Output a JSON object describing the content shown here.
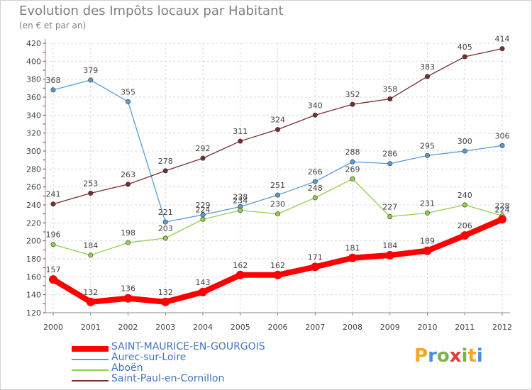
{
  "header": {
    "title": "Evolution des Impôts locaux par Habitant",
    "subtitle": "(en € et par an)"
  },
  "chart_data": {
    "type": "line",
    "x": [
      "2000",
      "2001",
      "2002",
      "2003",
      "2004",
      "2005",
      "2006",
      "2007",
      "2008",
      "2009",
      "2010",
      "2011",
      "2012"
    ],
    "ylim": [
      120,
      420
    ],
    "yticks": [
      120,
      140,
      160,
      180,
      200,
      220,
      240,
      260,
      280,
      300,
      320,
      340,
      360,
      380,
      400,
      420
    ],
    "grid": true,
    "legend_position": "bottom-left",
    "series": [
      {
        "name": "SAINT-MAURICE-EN-GOURGOIS",
        "color": "#ff0000",
        "emphasis": true,
        "values": [
          157,
          132,
          136,
          132,
          143,
          162,
          162,
          171,
          181,
          184,
          189,
          206,
          224
        ]
      },
      {
        "name": "Aurec-sur-Loire",
        "color": "#5b9bd5",
        "values": [
          368,
          379,
          355,
          221,
          229,
          238,
          251,
          266,
          288,
          286,
          295,
          300,
          306
        ]
      },
      {
        "name": "Aboën",
        "color": "#92d050",
        "values": [
          196,
          184,
          198,
          203,
          224,
          234,
          230,
          248,
          269,
          227,
          231,
          240,
          228
        ]
      },
      {
        "name": "Saint-Paul-en-Cornillon",
        "color": "#7b2c2c",
        "values": [
          241,
          253,
          263,
          278,
          292,
          311,
          324,
          340,
          352,
          358,
          383,
          405,
          414
        ]
      }
    ]
  },
  "branding": {
    "logo_letters": [
      "P",
      "r",
      "o",
      "x",
      "i",
      "t",
      "i"
    ],
    "logo_colors": [
      "#f5a623",
      "#4a90d9",
      "#7cb342",
      "#e53935",
      "#7cb342",
      "#f5a623",
      "#4a90d9"
    ]
  }
}
